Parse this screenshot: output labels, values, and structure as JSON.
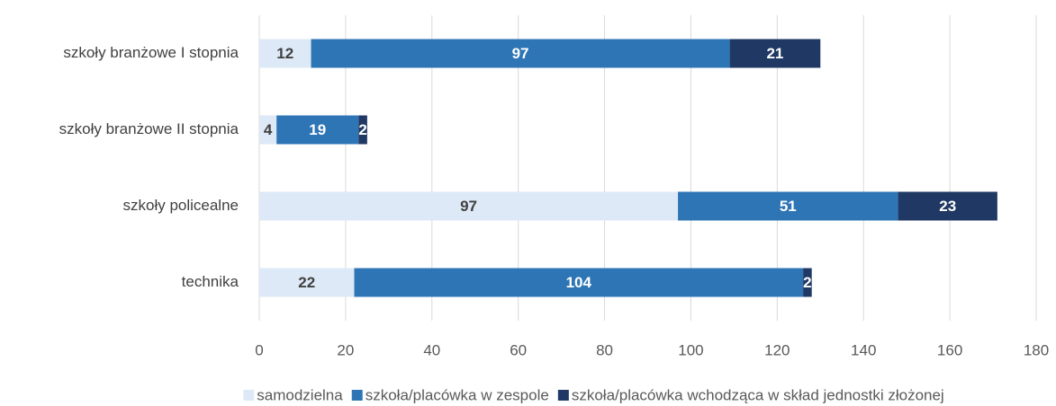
{
  "chart_data": {
    "type": "stacked_bar_horizontal",
    "categories": [
      "szkoły branżowe I stopnia",
      "szkoły branżowe II stopnia",
      "szkoły policealne",
      "technika"
    ],
    "series": [
      {
        "name": "samodzielna",
        "color": "#dde9f6",
        "values": [
          12,
          4,
          97,
          22
        ]
      },
      {
        "name": "szkoła/placówka w zespole",
        "color": "#2e75b6",
        "values": [
          97,
          19,
          51,
          104
        ]
      },
      {
        "name": "szkoła/placówka wchodząca w skład jednostki złożonej",
        "color": "#1f3864",
        "values": [
          21,
          2,
          23,
          2
        ]
      }
    ],
    "xlim": [
      0,
      180
    ],
    "xticks": [
      0,
      20,
      40,
      60,
      80,
      100,
      120,
      140,
      160,
      180
    ],
    "grid": true,
    "legend": "bottom"
  }
}
